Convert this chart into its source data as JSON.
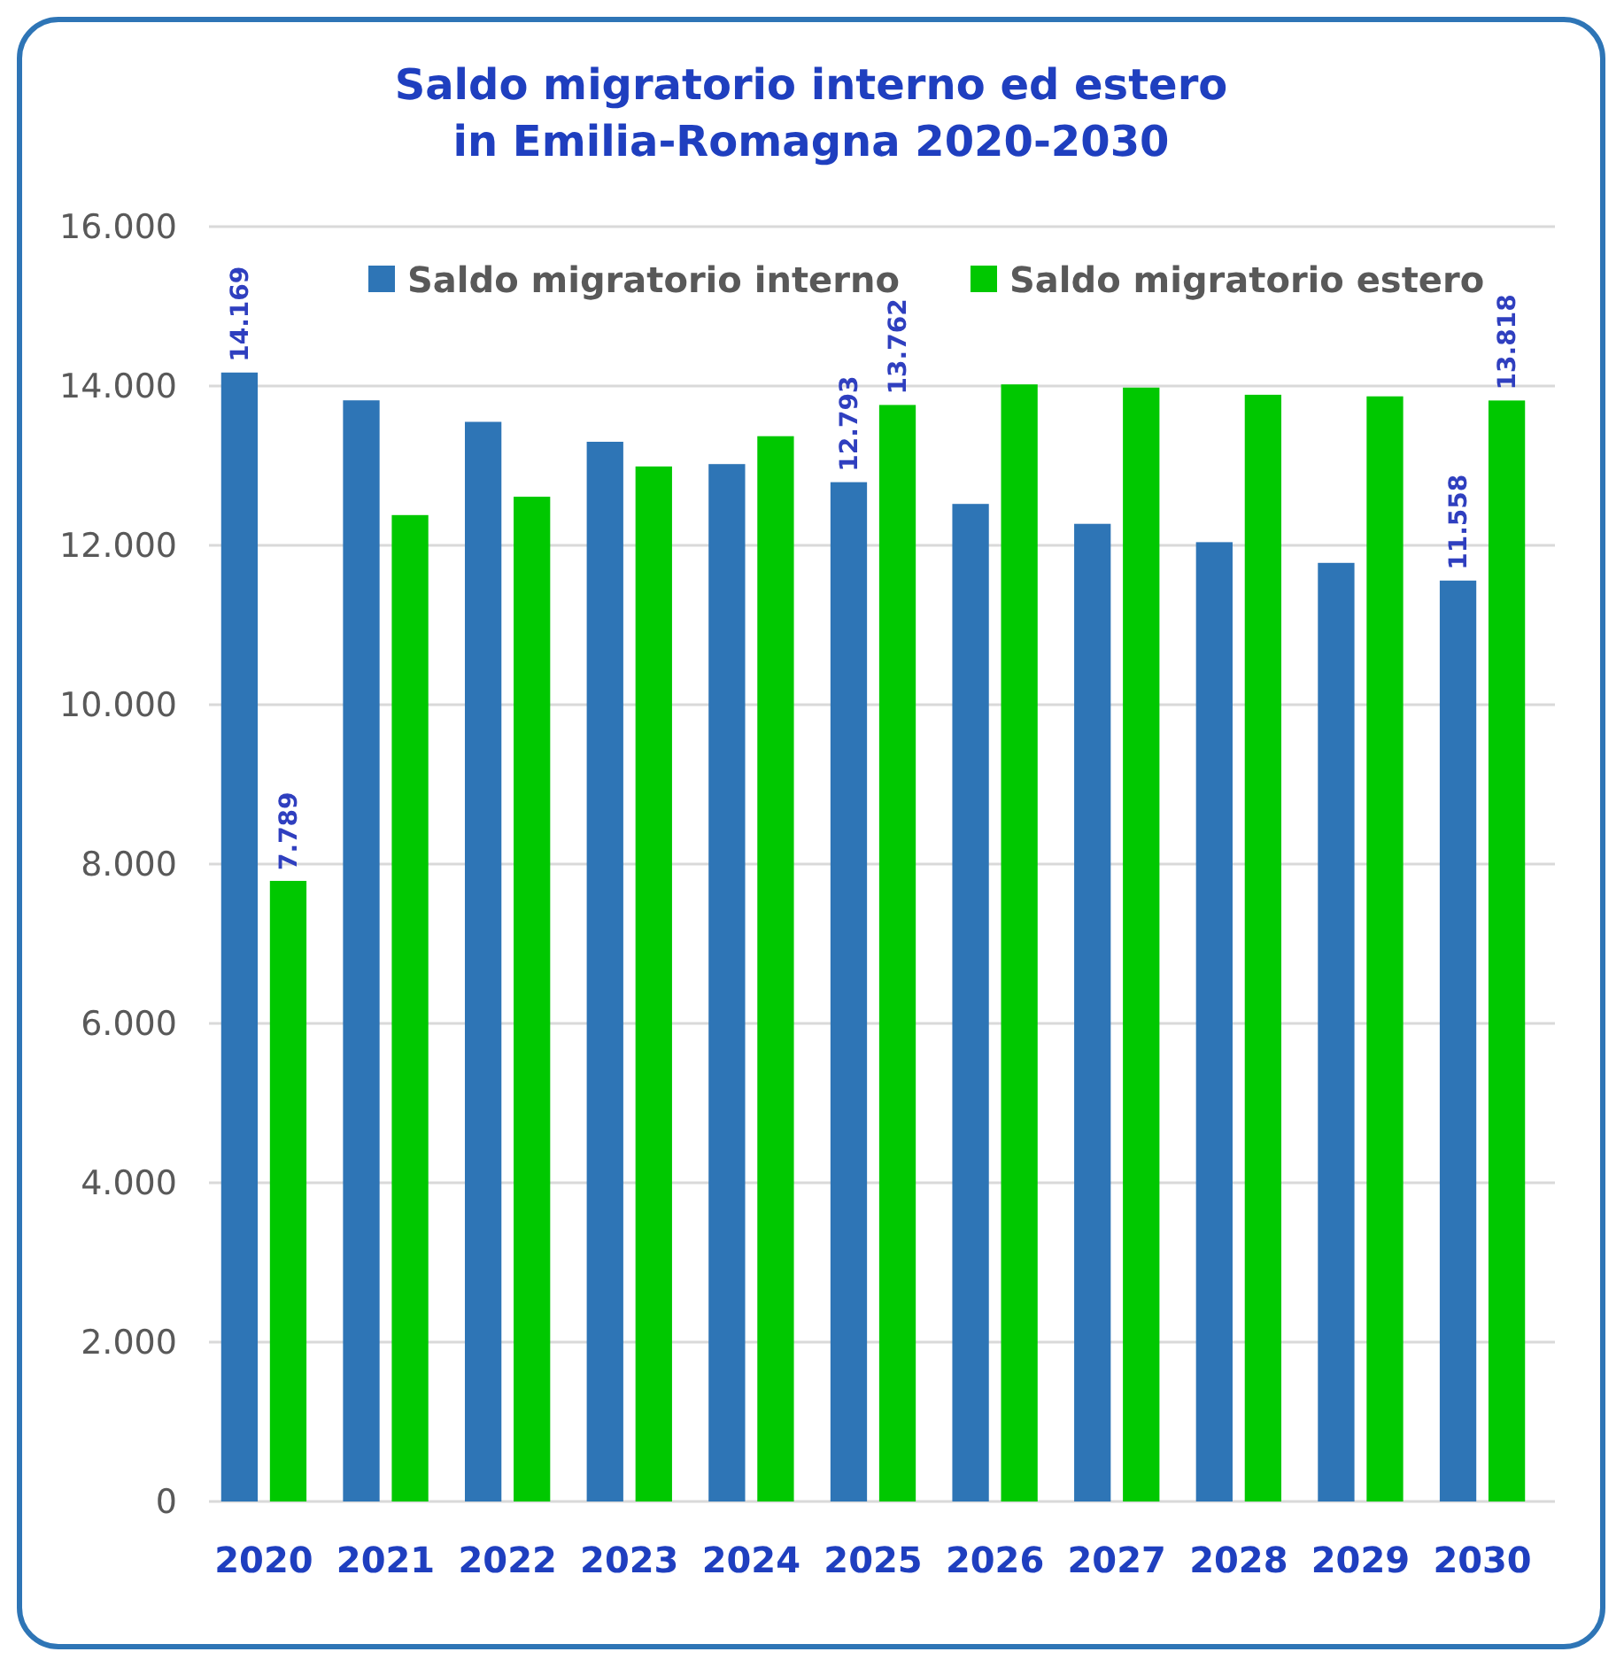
{
  "chart_data": {
    "type": "bar",
    "title": "Saldo migratorio interno ed estero\nin Emilia-Romagna 2020-2030",
    "categories": [
      "2020",
      "2021",
      "2022",
      "2023",
      "2024",
      "2025",
      "2026",
      "2027",
      "2028",
      "2029",
      "2030"
    ],
    "series": [
      {
        "name": "Saldo migratorio interno",
        "color": "#2e75b6",
        "values": [
          14169,
          13820,
          13550,
          13300,
          13020,
          12793,
          12520,
          12270,
          12040,
          11780,
          11558
        ],
        "value_labels": [
          "14.169",
          null,
          null,
          null,
          null,
          "12.793",
          null,
          null,
          null,
          null,
          "11.558"
        ]
      },
      {
        "name": "Saldo migratorio estero",
        "color": "#00c800",
        "values": [
          7789,
          12380,
          12610,
          12990,
          13370,
          13762,
          14020,
          13980,
          13890,
          13870,
          13818
        ],
        "value_labels": [
          "7.789",
          null,
          null,
          null,
          null,
          "13.762",
          null,
          null,
          null,
          null,
          "13.818"
        ]
      }
    ],
    "ylim": [
      0,
      16000
    ],
    "yticks": [
      {
        "value": 0,
        "label": "0"
      },
      {
        "value": 2000,
        "label": "2.000"
      },
      {
        "value": 4000,
        "label": "4.000"
      },
      {
        "value": 6000,
        "label": "6.000"
      },
      {
        "value": 8000,
        "label": "8.000"
      },
      {
        "value": 10000,
        "label": "10.000"
      },
      {
        "value": 12000,
        "label": "12.000"
      },
      {
        "value": 14000,
        "label": "14.000"
      },
      {
        "value": 16000,
        "label": "16.000"
      }
    ],
    "grid": "y",
    "legend": "top"
  }
}
